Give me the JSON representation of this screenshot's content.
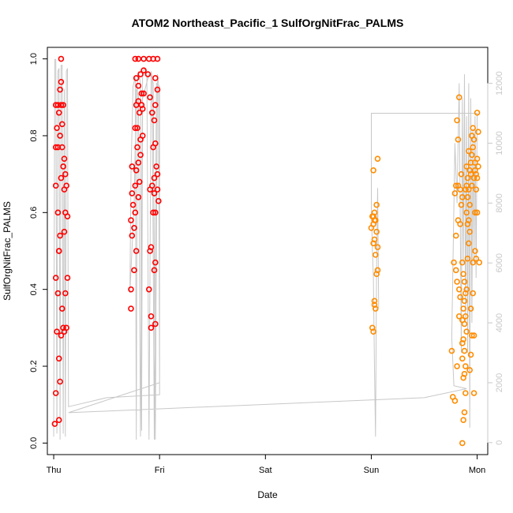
{
  "chart_data": {
    "type": "scatter",
    "title": "ATOM2 Northeast_Pacific_1 SulfOrgNitFrac_PALMS",
    "xlabel": "Date",
    "ylabel": "SulfOrgNitFrac_PALMS",
    "x_unit": "days since Thu 00:00",
    "xlim": [
      -0.06,
      4.1
    ],
    "ylim": [
      -0.03,
      1.03
    ],
    "y_ticks": [
      "0.0",
      "0.2",
      "0.4",
      "0.6",
      "0.8",
      "1.0"
    ],
    "y_tick_values": [
      0,
      0.2,
      0.4,
      0.6,
      0.8,
      1.0
    ],
    "x_ticks": [
      "Thu",
      "Fri",
      "Sat",
      "Sun",
      "Mon"
    ],
    "x_tick_values": [
      0,
      1,
      2,
      3,
      4
    ],
    "secondary_axis": {
      "ylim": [
        -400,
        13200
      ],
      "ticks": [
        "0",
        "2000",
        "4000",
        "6000",
        "8000",
        "10000",
        "12000"
      ],
      "tick_values": [
        0,
        2000,
        4000,
        6000,
        8000,
        10000,
        12000
      ],
      "color": "#c8c8c8"
    },
    "grid": false,
    "series": [
      {
        "color": "#ff0000",
        "values": [
          [
            0.01,
            0.05
          ],
          [
            0.05,
            0.06
          ],
          [
            0.02,
            0.13
          ],
          [
            0.06,
            0.16
          ],
          [
            0.05,
            0.22
          ],
          [
            0.03,
            0.29
          ],
          [
            0.07,
            0.28
          ],
          [
            0.09,
            0.3
          ],
          [
            0.12,
            0.3
          ],
          [
            0.04,
            0.39
          ],
          [
            0.08,
            0.35
          ],
          [
            0.11,
            0.39
          ],
          [
            0.13,
            0.43
          ],
          [
            0.02,
            0.43
          ],
          [
            0.05,
            0.5
          ],
          [
            0.06,
            0.54
          ],
          [
            0.1,
            0.55
          ],
          [
            0.13,
            0.59
          ],
          [
            0.11,
            0.6
          ],
          [
            0.04,
            0.6
          ],
          [
            0.02,
            0.67
          ],
          [
            0.1,
            0.66
          ],
          [
            0.12,
            0.67
          ],
          [
            0.07,
            0.69
          ],
          [
            0.11,
            0.7
          ],
          [
            0.09,
            0.72
          ],
          [
            0.1,
            0.74
          ],
          [
            0.02,
            0.77
          ],
          [
            0.04,
            0.77
          ],
          [
            0.08,
            0.77
          ],
          [
            0.06,
            0.8
          ],
          [
            0.03,
            0.82
          ],
          [
            0.08,
            0.83
          ],
          [
            0.05,
            0.86
          ],
          [
            0.04,
            0.88
          ],
          [
            0.07,
            0.88
          ],
          [
            0.02,
            0.88
          ],
          [
            0.09,
            0.88
          ],
          [
            0.06,
            0.92
          ],
          [
            0.07,
            0.94
          ],
          [
            0.07,
            1.0
          ],
          [
            0.05,
            0.5
          ],
          [
            0.1,
            0.29
          ]
        ]
      },
      {
        "color": "#ff0000",
        "values": [
          [
            0.73,
            0.35
          ],
          [
            0.73,
            0.4
          ],
          [
            0.76,
            0.45
          ],
          [
            0.78,
            0.5
          ],
          [
            0.74,
            0.54
          ],
          [
            0.76,
            0.56
          ],
          [
            0.73,
            0.58
          ],
          [
            0.77,
            0.6
          ],
          [
            0.75,
            0.62
          ],
          [
            0.8,
            0.64
          ],
          [
            0.74,
            0.65
          ],
          [
            0.77,
            0.67
          ],
          [
            0.81,
            0.68
          ],
          [
            0.78,
            0.71
          ],
          [
            0.74,
            0.72
          ],
          [
            0.8,
            0.73
          ],
          [
            0.82,
            0.75
          ],
          [
            0.79,
            0.77
          ],
          [
            0.82,
            0.79
          ],
          [
            0.84,
            0.8
          ],
          [
            0.77,
            0.82
          ],
          [
            0.79,
            0.82
          ],
          [
            0.81,
            0.86
          ],
          [
            0.84,
            0.87
          ],
          [
            0.83,
            0.88
          ],
          [
            0.78,
            0.88
          ],
          [
            0.8,
            0.89
          ],
          [
            0.83,
            0.91
          ],
          [
            0.85,
            0.91
          ],
          [
            0.8,
            0.93
          ],
          [
            0.78,
            0.95
          ],
          [
            0.82,
            0.96
          ],
          [
            0.85,
            0.97
          ],
          [
            0.77,
            1.0
          ],
          [
            0.8,
            1.0
          ],
          [
            0.85,
            1.0
          ],
          [
            0.9,
            1.0
          ],
          [
            0.94,
            1.0
          ],
          [
            0.98,
            1.0
          ],
          [
            0.91,
            0.9
          ],
          [
            0.96,
            0.88
          ],
          [
            0.98,
            0.92
          ],
          [
            0.93,
            0.86
          ],
          [
            0.95,
            0.84
          ],
          [
            0.94,
            0.77
          ],
          [
            0.96,
            0.78
          ],
          [
            0.97,
            0.72
          ],
          [
            0.98,
            0.7
          ],
          [
            0.95,
            0.69
          ],
          [
            0.98,
            0.66
          ],
          [
            0.95,
            0.65
          ],
          [
            0.91,
            0.66
          ],
          [
            0.99,
            0.63
          ],
          [
            0.96,
            0.6
          ],
          [
            0.94,
            0.6
          ],
          [
            0.92,
            0.51
          ],
          [
            0.91,
            0.5
          ],
          [
            0.96,
            0.47
          ],
          [
            0.95,
            0.45
          ],
          [
            0.9,
            0.4
          ],
          [
            0.92,
            0.33
          ],
          [
            0.96,
            0.31
          ],
          [
            0.92,
            0.3
          ],
          [
            0.89,
            0.96
          ],
          [
            0.96,
            0.95
          ],
          [
            0.93,
            0.67
          ]
        ]
      },
      {
        "color": "#ff8c00",
        "values": [
          [
            3.01,
            0.3
          ],
          [
            3.02,
            0.29
          ],
          [
            3.03,
            0.36
          ],
          [
            3.03,
            0.37
          ],
          [
            3.04,
            0.35
          ],
          [
            3.05,
            0.44
          ],
          [
            3.06,
            0.45
          ],
          [
            3.04,
            0.49
          ],
          [
            3.06,
            0.51
          ],
          [
            3.02,
            0.52
          ],
          [
            3.03,
            0.53
          ],
          [
            3.05,
            0.55
          ],
          [
            3.0,
            0.56
          ],
          [
            3.02,
            0.57
          ],
          [
            3.03,
            0.58
          ],
          [
            3.01,
            0.59
          ],
          [
            3.02,
            0.59
          ],
          [
            3.04,
            0.58
          ],
          [
            3.03,
            0.6
          ],
          [
            3.05,
            0.62
          ],
          [
            3.02,
            0.71
          ],
          [
            3.06,
            0.74
          ]
        ]
      },
      {
        "color": "#ff8c00",
        "values": [
          [
            3.76,
            0.24
          ],
          [
            3.77,
            0.12
          ],
          [
            3.79,
            0.11
          ],
          [
            3.81,
            0.2
          ],
          [
            3.83,
            0.33
          ],
          [
            3.84,
            0.38
          ],
          [
            3.83,
            0.4
          ],
          [
            3.81,
            0.42
          ],
          [
            3.8,
            0.45
          ],
          [
            3.78,
            0.47
          ],
          [
            3.8,
            0.54
          ],
          [
            3.82,
            0.58
          ],
          [
            3.79,
            0.65
          ],
          [
            3.8,
            0.67
          ],
          [
            3.82,
            0.67
          ],
          [
            3.84,
            0.66
          ],
          [
            3.81,
            0.84
          ],
          [
            3.82,
            0.79
          ],
          [
            3.85,
            0.7
          ],
          [
            3.86,
            0.0
          ],
          [
            3.87,
            0.06
          ],
          [
            3.88,
            0.08
          ],
          [
            3.89,
            0.13
          ],
          [
            3.87,
            0.17
          ],
          [
            3.88,
            0.18
          ],
          [
            3.89,
            0.2
          ],
          [
            3.86,
            0.22
          ],
          [
            3.88,
            0.24
          ],
          [
            3.86,
            0.26
          ],
          [
            3.87,
            0.27
          ],
          [
            3.9,
            0.29
          ],
          [
            3.88,
            0.31
          ],
          [
            3.86,
            0.32
          ],
          [
            3.89,
            0.33
          ],
          [
            3.87,
            0.35
          ],
          [
            3.88,
            0.37
          ],
          [
            3.89,
            0.39
          ],
          [
            3.9,
            0.4
          ],
          [
            3.88,
            0.42
          ],
          [
            3.87,
            0.44
          ],
          [
            3.86,
            0.47
          ],
          [
            3.91,
            0.48
          ],
          [
            3.92,
            0.52
          ],
          [
            3.93,
            0.55
          ],
          [
            3.91,
            0.57
          ],
          [
            3.92,
            0.58
          ],
          [
            3.9,
            0.6
          ],
          [
            3.93,
            0.62
          ],
          [
            3.91,
            0.64
          ],
          [
            3.92,
            0.66
          ],
          [
            3.9,
            0.67
          ],
          [
            3.91,
            0.69
          ],
          [
            3.93,
            0.71
          ],
          [
            3.94,
            0.73
          ],
          [
            3.95,
            0.75
          ],
          [
            3.96,
            0.77
          ],
          [
            3.97,
            0.79
          ],
          [
            3.95,
            0.8
          ],
          [
            3.96,
            0.82
          ],
          [
            3.93,
            0.19
          ],
          [
            3.94,
            0.23
          ],
          [
            3.95,
            0.28
          ],
          [
            3.94,
            0.35
          ],
          [
            3.96,
            0.39
          ],
          [
            3.97,
            0.13
          ],
          [
            3.98,
            0.6
          ],
          [
            4.0,
            0.6
          ],
          [
            3.99,
            0.48
          ],
          [
            3.98,
            0.5
          ],
          [
            3.99,
            0.66
          ],
          [
            4.0,
            0.69
          ],
          [
            3.99,
            0.7
          ],
          [
            4.01,
            0.72
          ],
          [
            4.0,
            0.74
          ],
          [
            3.98,
            0.73
          ],
          [
            4.01,
            0.81
          ],
          [
            4.0,
            0.86
          ],
          [
            4.02,
            0.47
          ],
          [
            3.97,
            0.28
          ],
          [
            3.96,
            0.47
          ],
          [
            3.84,
            0.57
          ],
          [
            3.85,
            0.62
          ],
          [
            3.86,
            0.64
          ],
          [
            3.83,
            0.9
          ],
          [
            3.89,
            0.66
          ],
          [
            3.9,
            0.72
          ],
          [
            3.92,
            0.76
          ],
          [
            3.94,
            0.7
          ],
          [
            3.95,
            0.67
          ],
          [
            3.97,
            0.69
          ],
          [
            3.98,
            0.71
          ]
        ]
      }
    ],
    "trace": {
      "color": "#c8c8c8",
      "values": [
        [
          0.0,
          200
        ],
        [
          0.01,
          12800
        ],
        [
          0.02,
          12800
        ],
        [
          0.03,
          300
        ],
        [
          0.04,
          12400
        ],
        [
          0.05,
          12500
        ],
        [
          0.06,
          100
        ],
        [
          0.07,
          12600
        ],
        [
          0.08,
          12600
        ],
        [
          0.09,
          300
        ],
        [
          0.1,
          11800
        ],
        [
          0.11,
          200
        ],
        [
          0.12,
          12400
        ],
        [
          0.13,
          12500
        ],
        [
          0.14,
          1200
        ],
        [
          0.5,
          1500
        ],
        [
          1.0,
          1600
        ],
        [
          1.0,
          2000
        ],
        [
          0.99,
          12000
        ],
        [
          0.98,
          12300
        ],
        [
          0.96,
          100
        ],
        [
          0.94,
          12000
        ],
        [
          0.92,
          12400
        ],
        [
          0.9,
          100
        ],
        [
          0.88,
          12200
        ],
        [
          0.86,
          12500
        ],
        [
          0.84,
          12400
        ],
        [
          0.82,
          200
        ],
        [
          0.8,
          11600
        ],
        [
          0.78,
          11800
        ],
        [
          0.76,
          8000
        ],
        [
          0.74,
          6500
        ],
        [
          0.72,
          5000
        ],
        [
          0.73,
          9000
        ],
        [
          0.74,
          10500
        ],
        [
          0.75,
          11900
        ],
        [
          0.77,
          12200
        ],
        [
          0.78,
          100
        ],
        [
          0.79,
          12000
        ],
        [
          0.8,
          12400
        ],
        [
          0.82,
          12000
        ],
        [
          0.83,
          400
        ],
        [
          0.84,
          11500
        ],
        [
          0.9,
          12300
        ],
        [
          0.93,
          12200
        ],
        [
          0.95,
          100
        ],
        [
          0.97,
          12000
        ],
        [
          1.0,
          11900
        ],
        [
          1.0,
          2000
        ],
        [
          0.14,
          1000
        ],
        [
          0.14,
          1000
        ],
        [
          3.5,
          1500
        ],
        [
          3.9,
          1800
        ],
        [
          3.9,
          1800
        ],
        [
          3.78,
          1900
        ],
        [
          3.76,
          3500
        ],
        [
          3.79,
          10000
        ],
        [
          3.81,
          8000
        ],
        [
          3.83,
          12000
        ],
        [
          3.85,
          3000
        ],
        [
          3.86,
          11500
        ],
        [
          3.87,
          6000
        ],
        [
          3.88,
          12300
        ],
        [
          3.89,
          4000
        ],
        [
          3.9,
          10900
        ],
        [
          3.91,
          3000
        ],
        [
          3.92,
          12000
        ],
        [
          3.93,
          500
        ],
        [
          3.94,
          11500
        ],
        [
          3.95,
          4000
        ],
        [
          3.96,
          10500
        ],
        [
          3.97,
          6000
        ],
        [
          3.98,
          10900
        ],
        [
          3.99,
          5500
        ],
        [
          4.0,
          11000
        ],
        [
          3.0,
          11000
        ],
        [
          3.0,
          7800
        ],
        [
          3.01,
          6500
        ],
        [
          3.02,
          5500
        ],
        [
          3.03,
          2500
        ],
        [
          3.04,
          200
        ],
        [
          3.05,
          6000
        ],
        [
          3.06,
          8500
        ],
        [
          3.07,
          4500
        ]
      ]
    }
  }
}
